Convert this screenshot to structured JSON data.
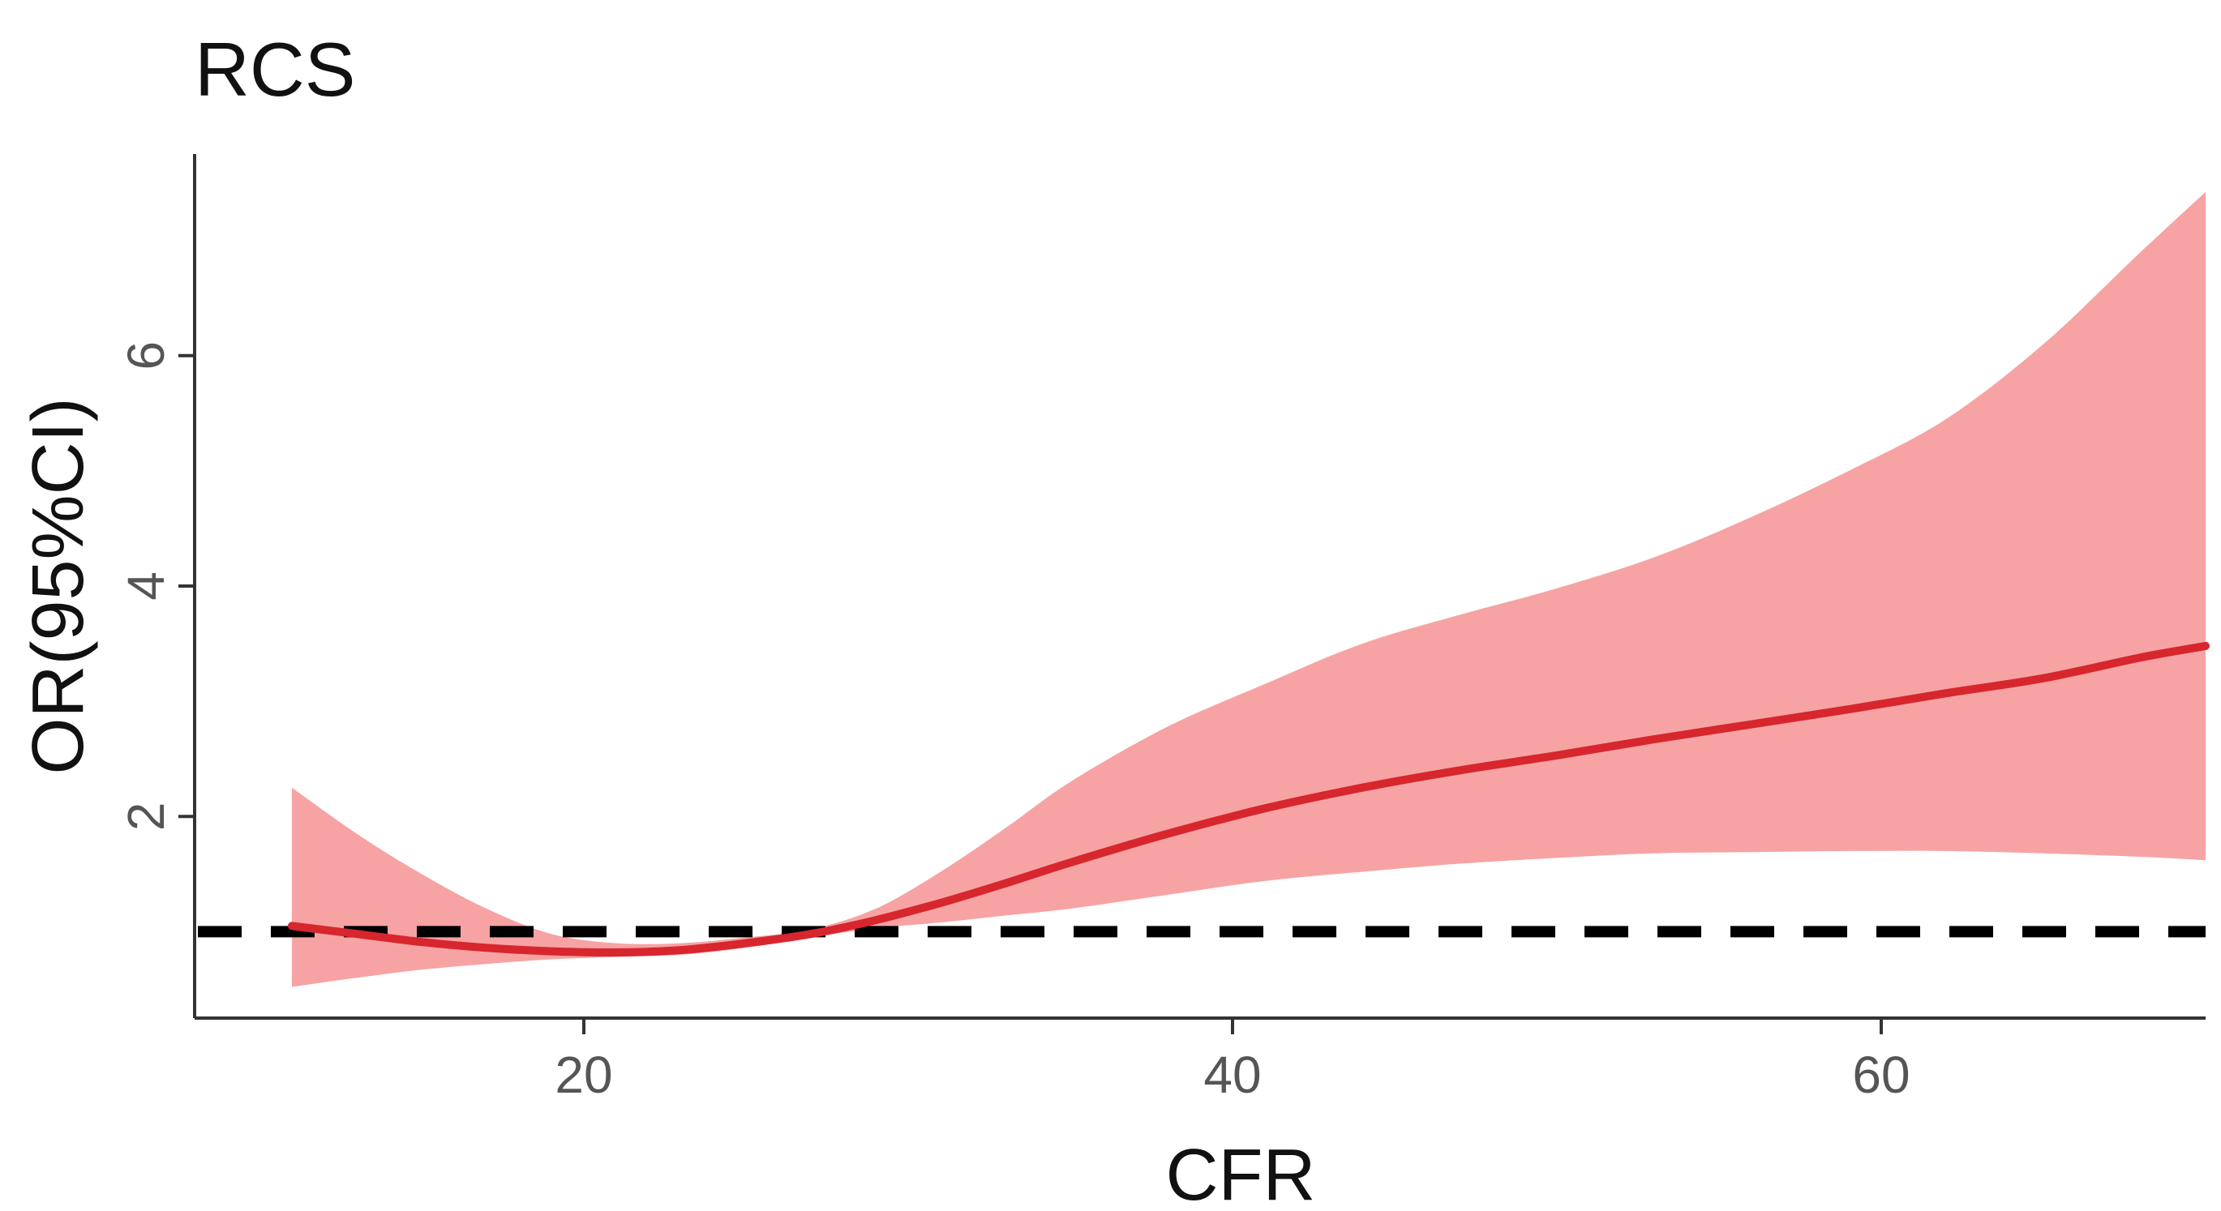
{
  "chart_data": {
    "type": "line",
    "title": "RCS",
    "xlabel": "CFR",
    "ylabel": "OR(95%CI)",
    "xlim": [
      8,
      70
    ],
    "ylim": [
      0.25,
      7.75
    ],
    "x_ticks": [
      20,
      40,
      60
    ],
    "y_ticks": [
      2,
      4,
      6
    ],
    "grid": false,
    "legend": "none",
    "reference_line": {
      "y": 1,
      "style": "dashed",
      "color": "#000000"
    },
    "colors": {
      "line": "#d7262e",
      "ribbon": "#f7a3a3"
    },
    "series": [
      {
        "x": [
          11,
          13,
          15,
          17,
          19,
          21,
          23,
          25,
          27,
          29,
          31,
          33,
          35,
          38,
          41,
          44,
          47,
          50,
          53,
          56,
          59,
          62,
          65,
          68,
          70
        ],
        "y": [
          1.05,
          0.98,
          0.91,
          0.86,
          0.83,
          0.82,
          0.84,
          0.9,
          0.98,
          1.1,
          1.25,
          1.42,
          1.6,
          1.85,
          2.07,
          2.25,
          2.4,
          2.53,
          2.67,
          2.8,
          2.93,
          3.07,
          3.2,
          3.38,
          3.48
        ],
        "lower": [
          0.52,
          0.6,
          0.67,
          0.72,
          0.76,
          0.78,
          0.8,
          0.86,
          0.95,
          1.03,
          1.08,
          1.14,
          1.2,
          1.32,
          1.44,
          1.52,
          1.59,
          1.64,
          1.68,
          1.69,
          1.7,
          1.7,
          1.68,
          1.65,
          1.62
        ],
        "upper": [
          2.25,
          1.85,
          1.5,
          1.2,
          0.98,
          0.9,
          0.9,
          0.95,
          1.02,
          1.2,
          1.52,
          1.9,
          2.3,
          2.78,
          3.15,
          3.5,
          3.75,
          3.98,
          4.25,
          4.6,
          5.0,
          5.45,
          6.1,
          6.9,
          7.42
        ]
      }
    ]
  }
}
